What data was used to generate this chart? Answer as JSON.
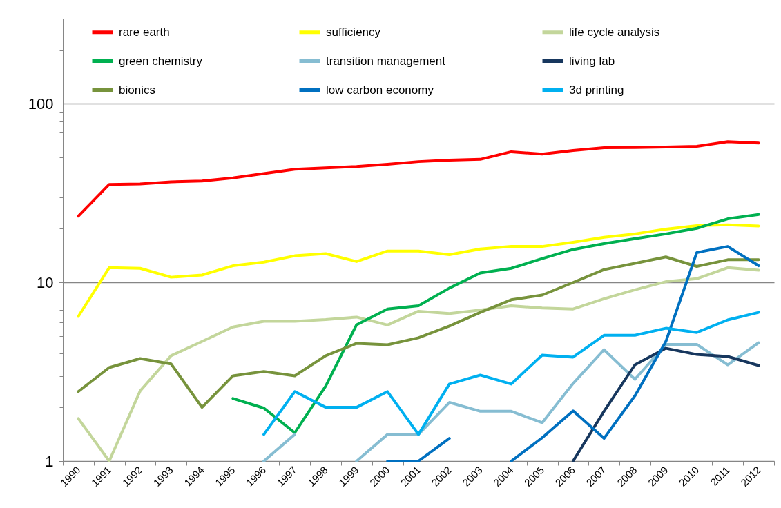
{
  "chart_data": {
    "type": "line",
    "categories": [
      "1990",
      "1991",
      "1992",
      "1993",
      "1994",
      "1995",
      "1996",
      "1997",
      "1998",
      "1999",
      "2000",
      "2001",
      "2002",
      "2003",
      "2004",
      "2005",
      "2006",
      "2007",
      "2008",
      "2009",
      "2010",
      "2011",
      "2012"
    ],
    "log": true,
    "ylim": [
      1,
      300
    ],
    "yticks": [
      1,
      {
        "value": 2,
        "label": null
      },
      {
        "value": 3,
        "label": null
      },
      {
        "value": 4,
        "label": null
      },
      {
        "value": 5,
        "label": null
      },
      {
        "value": 6,
        "label": null
      },
      {
        "value": 7,
        "label": null
      },
      {
        "value": 8,
        "label": null
      },
      {
        "value": 9,
        "label": null
      },
      10,
      {
        "value": 20,
        "label": null
      },
      {
        "value": 30,
        "label": null
      },
      {
        "value": 40,
        "label": null
      },
      {
        "value": 50,
        "label": null
      },
      {
        "value": 60,
        "label": null
      },
      {
        "value": 70,
        "label": null
      },
      {
        "value": 80,
        "label": null
      },
      {
        "value": 90,
        "label": null
      },
      100,
      {
        "value": 200,
        "label": null
      },
      {
        "value": 300,
        "label": null
      }
    ],
    "grid": "y",
    "legend": "top",
    "series": [
      {
        "name": "rare earth",
        "color": "#ff0000",
        "values": [
          23.5,
          35.4,
          35.6,
          36.6,
          37,
          38.5,
          40.7,
          43,
          43.8,
          44.6,
          45.9,
          47.5,
          48.4,
          48.9,
          53.9,
          52.3,
          54.8,
          56.8,
          57,
          57.3,
          57.8,
          61.4,
          60.3
        ]
      },
      {
        "name": "sufficiency",
        "color": "#ffff00",
        "values": [
          6.45,
          12.1,
          12,
          10.7,
          11,
          12.4,
          13,
          14.1,
          14.5,
          13.1,
          15,
          15,
          14.3,
          15.4,
          15.9,
          15.9,
          16.8,
          17.9,
          18.7,
          19.9,
          20.8,
          21,
          20.7
        ]
      },
      {
        "name": "life cycle analysis",
        "color": "#c3d69b",
        "values": [
          1.73,
          1,
          2.47,
          3.89,
          4.67,
          5.63,
          6.06,
          6.06,
          6.2,
          6.4,
          5.78,
          6.9,
          6.7,
          7,
          7.4,
          7.2,
          7.1,
          8.1,
          9.1,
          10.1,
          10.5,
          12.1,
          11.7
        ]
      },
      {
        "name": "green chemistry",
        "color": "#00b050",
        "values": [
          null,
          null,
          null,
          null,
          null,
          2.24,
          1.98,
          1.44,
          2.63,
          5.8,
          7.1,
          7.4,
          9.3,
          11.3,
          12,
          13.6,
          15.3,
          16.5,
          17.6,
          18.7,
          20.1,
          22.7,
          24
        ]
      },
      {
        "name": "transition management",
        "color": "#86bdd2",
        "values": [
          null,
          null,
          null,
          null,
          null,
          null,
          1,
          1.41,
          null,
          1,
          1.41,
          1.41,
          2.13,
          1.9,
          1.9,
          1.64,
          2.72,
          4.2,
          2.87,
          4.5,
          4.5,
          3.46,
          4.6
        ]
      },
      {
        "name": "living lab",
        "color": "#17375e",
        "values": [
          null,
          null,
          null,
          null,
          null,
          null,
          null,
          null,
          null,
          null,
          null,
          null,
          null,
          null,
          null,
          null,
          1,
          1.9,
          3.46,
          4.28,
          3.95,
          3.85,
          3.43
        ]
      },
      {
        "name": "bionics",
        "color": "#77933c",
        "values": [
          2.45,
          3.34,
          3.75,
          3.5,
          2,
          3,
          3.17,
          3,
          3.89,
          4.56,
          4.48,
          4.9,
          5.7,
          6.8,
          8,
          8.5,
          10,
          11.8,
          12.8,
          13.9,
          12.3,
          13.4,
          13.4
        ]
      },
      {
        "name": "low carbon economy",
        "color": "#0070c0",
        "values": [
          null,
          null,
          null,
          null,
          null,
          null,
          null,
          null,
          null,
          null,
          1,
          1,
          1.34,
          null,
          1,
          1.35,
          1.91,
          1.34,
          2.32,
          4.67,
          14.7,
          15.9,
          12.4
        ]
      },
      {
        "name": "3d printing",
        "color": "#00b0f0",
        "values": [
          null,
          null,
          null,
          null,
          null,
          null,
          1.41,
          2.45,
          2,
          2,
          2.45,
          1.41,
          2.7,
          3.03,
          2.7,
          3.92,
          3.82,
          5.06,
          5.06,
          5.54,
          5.25,
          6.17,
          6.8
        ]
      }
    ]
  }
}
